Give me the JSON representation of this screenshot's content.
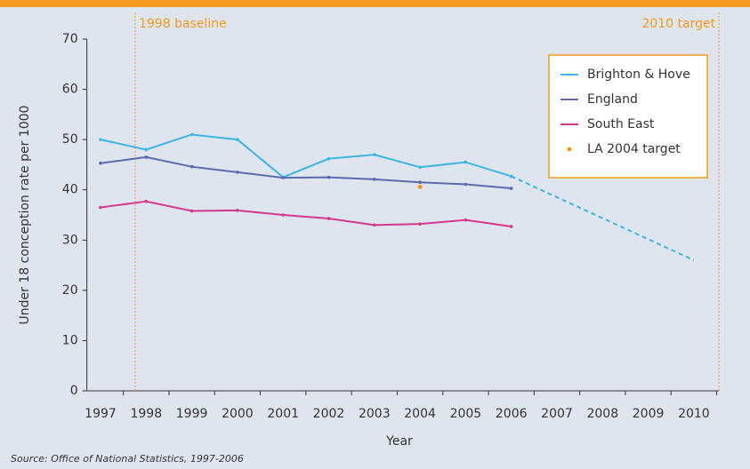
{
  "chart_data": {
    "type": "line",
    "x": [
      1997,
      1998,
      1999,
      2000,
      2001,
      2002,
      2003,
      2004,
      2005,
      2006,
      2007,
      2008,
      2009,
      2010
    ],
    "xlim": [
      1996.7,
      2010.55
    ],
    "ylim": [
      0,
      70
    ],
    "yticks": [
      0,
      10,
      20,
      30,
      40,
      50,
      60,
      70
    ],
    "xlabel": "Year",
    "ylabel": "Under 18 conception rate per 1000",
    "series": [
      {
        "name": "Brighton & Hove",
        "color": "#3cb6e3",
        "values": [
          50,
          48,
          51,
          50,
          42.5,
          46.2,
          47,
          44.5,
          45.5,
          42.7,
          null,
          null,
          null,
          null
        ]
      },
      {
        "name": "England",
        "color": "#5b6aae",
        "values": [
          45.3,
          46.5,
          44.6,
          43.5,
          42.4,
          42.5,
          42.1,
          41.5,
          41.1,
          40.3,
          null,
          null,
          null,
          null
        ]
      },
      {
        "name": "South East",
        "color": "#d6378f",
        "values": [
          36.5,
          37.7,
          35.8,
          35.9,
          35.0,
          34.3,
          33.0,
          33.2,
          34.0,
          32.7,
          null,
          null,
          null,
          null
        ]
      }
    ],
    "target_point": {
      "name": "LA 2004 target",
      "color": "#f39a1f",
      "x": 2004,
      "value": 40.6
    },
    "projection": {
      "color": "#3cb6e3",
      "x": [
        2006,
        2010
      ],
      "values": [
        42.7,
        26
      ]
    },
    "reference_lines": [
      {
        "label": "1998 baseline",
        "x": 1997.76
      },
      {
        "label": "2010 target",
        "x": 2010.55
      }
    ],
    "source": "Source: Office of National Statistics, 1997-2006"
  }
}
